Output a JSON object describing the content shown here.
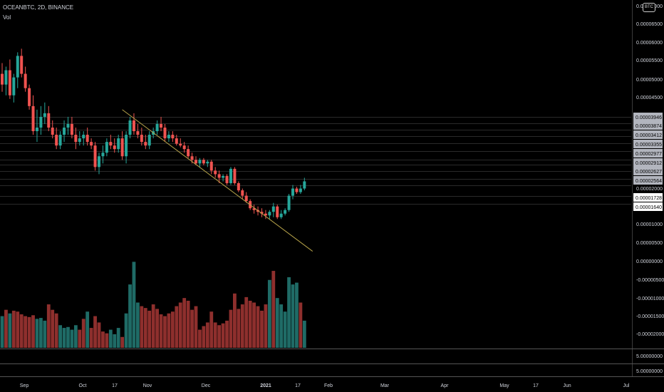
{
  "symbol_line": "OCEANBTC, 2D, BINANCE",
  "volume_label": "Vol",
  "currency_badge": "BTC",
  "colors": {
    "up": "#26a69a",
    "down": "#ef5350",
    "up_vol": "#1f6b66",
    "down_vol": "#8e2f2d",
    "trend": "#b8a44a",
    "line": "#3a3a3a",
    "text": "#d1d4dc"
  },
  "price_axis_labels": [
    "0.00007000",
    "0.00006500",
    "0.00006000",
    "0.00005500",
    "0.00005000",
    "0.00004500",
    "0.00002000",
    "0.00001000",
    "0.00000500",
    "0.00000000",
    "-0.00000500",
    "-0.00001000",
    "-0.00001500",
    "-0.00002000"
  ],
  "highlighted_levels": [
    "0.00003946",
    "0.00003874",
    "0.00003412",
    "0.00003355",
    "0.00002977",
    "0.00002912",
    "0.00002627",
    "0.00002564",
    "0.00001728",
    "0.00001640"
  ],
  "pane_labels": [
    "5.00000000",
    "5.00000000"
  ],
  "time_axis_labels": [
    "Sep",
    "Oct",
    "17",
    "Nov",
    "Dec",
    "2021",
    "17",
    "Feb",
    "Mar",
    "Apr",
    "May",
    "17",
    "Jun",
    "Jul"
  ],
  "chart_data": {
    "type": "candlestick",
    "title": "OCEANBTC, 2D, BINANCE",
    "interval": "2D",
    "exchange": "BINANCE",
    "y_axis_side": "right",
    "grid": false,
    "candles": [
      {
        "o": 5.1,
        "h": 5.4,
        "l": 4.6,
        "c": 4.8
      },
      {
        "o": 4.8,
        "h": 5.3,
        "l": 4.5,
        "c": 5.2
      },
      {
        "o": 5.2,
        "h": 5.5,
        "l": 4.4,
        "c": 4.5
      },
      {
        "o": 4.5,
        "h": 5.1,
        "l": 4.3,
        "c": 5.0
      },
      {
        "o": 5.0,
        "h": 5.7,
        "l": 4.7,
        "c": 5.6
      },
      {
        "o": 5.6,
        "h": 5.8,
        "l": 5.0,
        "c": 5.1
      },
      {
        "o": 5.1,
        "h": 5.3,
        "l": 4.6,
        "c": 4.7
      },
      {
        "o": 4.7,
        "h": 4.8,
        "l": 4.1,
        "c": 4.2
      },
      {
        "o": 4.2,
        "h": 4.5,
        "l": 3.4,
        "c": 3.5
      },
      {
        "o": 3.5,
        "h": 4.1,
        "l": 3.2,
        "c": 3.6
      },
      {
        "o": 3.6,
        "h": 4.2,
        "l": 3.4,
        "c": 3.9
      },
      {
        "o": 3.9,
        "h": 4.3,
        "l": 3.7,
        "c": 4.0
      },
      {
        "o": 4.0,
        "h": 4.2,
        "l": 3.5,
        "c": 3.6
      },
      {
        "o": 3.6,
        "h": 3.8,
        "l": 3.3,
        "c": 3.4
      },
      {
        "o": 3.4,
        "h": 3.6,
        "l": 3.0,
        "c": 3.1
      },
      {
        "o": 3.1,
        "h": 3.5,
        "l": 3.0,
        "c": 3.4
      },
      {
        "o": 3.4,
        "h": 3.8,
        "l": 3.2,
        "c": 3.6
      },
      {
        "o": 3.6,
        "h": 3.9,
        "l": 3.4,
        "c": 3.7
      },
      {
        "o": 3.7,
        "h": 3.9,
        "l": 3.3,
        "c": 3.4
      },
      {
        "o": 3.4,
        "h": 3.6,
        "l": 3.0,
        "c": 3.2
      },
      {
        "o": 3.2,
        "h": 3.5,
        "l": 3.1,
        "c": 3.3
      },
      {
        "o": 3.3,
        "h": 3.5,
        "l": 3.1,
        "c": 3.4
      },
      {
        "o": 3.4,
        "h": 3.6,
        "l": 3.1,
        "c": 3.2
      },
      {
        "o": 3.2,
        "h": 3.3,
        "l": 3.0,
        "c": 3.1
      },
      {
        "o": 3.1,
        "h": 3.2,
        "l": 2.4,
        "c": 2.5
      },
      {
        "o": 2.5,
        "h": 2.9,
        "l": 2.3,
        "c": 2.8
      },
      {
        "o": 2.8,
        "h": 3.1,
        "l": 2.6,
        "c": 2.9
      },
      {
        "o": 2.9,
        "h": 3.3,
        "l": 2.8,
        "c": 3.2
      },
      {
        "o": 3.2,
        "h": 3.4,
        "l": 3.0,
        "c": 3.1
      },
      {
        "o": 3.1,
        "h": 3.3,
        "l": 2.9,
        "c": 3.0
      },
      {
        "o": 3.0,
        "h": 3.4,
        "l": 2.9,
        "c": 3.3
      },
      {
        "o": 3.3,
        "h": 3.5,
        "l": 2.7,
        "c": 2.8
      },
      {
        "o": 2.8,
        "h": 3.5,
        "l": 2.6,
        "c": 3.4
      },
      {
        "o": 3.4,
        "h": 3.9,
        "l": 3.3,
        "c": 3.8
      },
      {
        "o": 3.8,
        "h": 4.0,
        "l": 3.4,
        "c": 3.5
      },
      {
        "o": 3.5,
        "h": 3.7,
        "l": 3.3,
        "c": 3.4
      },
      {
        "o": 3.4,
        "h": 3.6,
        "l": 3.1,
        "c": 3.2
      },
      {
        "o": 3.2,
        "h": 3.4,
        "l": 3.0,
        "c": 3.1
      },
      {
        "o": 3.1,
        "h": 3.5,
        "l": 3.0,
        "c": 3.4
      },
      {
        "o": 3.4,
        "h": 3.6,
        "l": 3.3,
        "c": 3.5
      },
      {
        "o": 3.5,
        "h": 3.8,
        "l": 3.4,
        "c": 3.7
      },
      {
        "o": 3.7,
        "h": 3.9,
        "l": 3.5,
        "c": 3.6
      },
      {
        "o": 3.6,
        "h": 3.7,
        "l": 3.2,
        "c": 3.3
      },
      {
        "o": 3.3,
        "h": 3.5,
        "l": 3.2,
        "c": 3.4
      },
      {
        "o": 3.4,
        "h": 3.5,
        "l": 3.2,
        "c": 3.3
      },
      {
        "o": 3.3,
        "h": 3.4,
        "l": 3.1,
        "c": 3.15
      },
      {
        "o": 3.15,
        "h": 3.3,
        "l": 3.05,
        "c": 3.1
      },
      {
        "o": 3.1,
        "h": 3.2,
        "l": 2.9,
        "c": 3.0
      },
      {
        "o": 3.0,
        "h": 3.1,
        "l": 2.75,
        "c": 2.8
      },
      {
        "o": 2.8,
        "h": 2.9,
        "l": 2.6,
        "c": 2.7
      },
      {
        "o": 2.7,
        "h": 2.8,
        "l": 2.55,
        "c": 2.6
      },
      {
        "o": 2.6,
        "h": 2.75,
        "l": 2.5,
        "c": 2.7
      },
      {
        "o": 2.7,
        "h": 2.75,
        "l": 2.55,
        "c": 2.6
      },
      {
        "o": 2.6,
        "h": 2.7,
        "l": 2.5,
        "c": 2.65
      },
      {
        "o": 2.65,
        "h": 2.7,
        "l": 2.3,
        "c": 2.4
      },
      {
        "o": 2.4,
        "h": 2.5,
        "l": 2.2,
        "c": 2.3
      },
      {
        "o": 2.3,
        "h": 2.4,
        "l": 2.05,
        "c": 2.2
      },
      {
        "o": 2.2,
        "h": 2.3,
        "l": 2.1,
        "c": 2.25
      },
      {
        "o": 2.25,
        "h": 2.3,
        "l": 2.0,
        "c": 2.05
      },
      {
        "o": 2.05,
        "h": 2.5,
        "l": 2.0,
        "c": 2.45
      },
      {
        "o": 2.45,
        "h": 2.5,
        "l": 2.0,
        "c": 2.05
      },
      {
        "o": 2.05,
        "h": 2.1,
        "l": 1.8,
        "c": 1.85
      },
      {
        "o": 1.85,
        "h": 1.9,
        "l": 1.6,
        "c": 1.7
      },
      {
        "o": 1.7,
        "h": 1.8,
        "l": 1.5,
        "c": 1.55
      },
      {
        "o": 1.55,
        "h": 1.6,
        "l": 1.3,
        "c": 1.35
      },
      {
        "o": 1.35,
        "h": 1.45,
        "l": 1.2,
        "c": 1.3
      },
      {
        "o": 1.3,
        "h": 1.4,
        "l": 1.15,
        "c": 1.25
      },
      {
        "o": 1.25,
        "h": 1.35,
        "l": 1.1,
        "c": 1.2
      },
      {
        "o": 1.2,
        "h": 1.3,
        "l": 1.05,
        "c": 1.15
      },
      {
        "o": 1.15,
        "h": 1.3,
        "l": 1.05,
        "c": 1.25
      },
      {
        "o": 1.25,
        "h": 1.5,
        "l": 1.1,
        "c": 1.4
      },
      {
        "o": 1.4,
        "h": 1.45,
        "l": 1.05,
        "c": 1.1
      },
      {
        "o": 1.1,
        "h": 1.3,
        "l": 1.05,
        "c": 1.2
      },
      {
        "o": 1.2,
        "h": 1.35,
        "l": 1.15,
        "c": 1.3
      },
      {
        "o": 1.3,
        "h": 1.75,
        "l": 1.25,
        "c": 1.7
      },
      {
        "o": 1.7,
        "h": 2.0,
        "l": 1.6,
        "c": 1.9
      },
      {
        "o": 1.9,
        "h": 1.95,
        "l": 1.75,
        "c": 1.8
      },
      {
        "o": 1.8,
        "h": 2.0,
        "l": 1.75,
        "c": 1.9
      },
      {
        "o": 1.9,
        "h": 2.2,
        "l": 1.85,
        "c": 2.1
      }
    ],
    "volume": [
      {
        "v": 35,
        "up": true
      },
      {
        "v": 42,
        "up": false
      },
      {
        "v": 38,
        "up": true
      },
      {
        "v": 41,
        "up": false
      },
      {
        "v": 40,
        "up": false
      },
      {
        "v": 37,
        "up": false
      },
      {
        "v": 35,
        "up": false
      },
      {
        "v": 34,
        "up": false
      },
      {
        "v": 36,
        "up": false
      },
      {
        "v": 32,
        "up": true
      },
      {
        "v": 33,
        "up": true
      },
      {
        "v": 30,
        "up": true
      },
      {
        "v": 48,
        "up": false
      },
      {
        "v": 42,
        "up": false
      },
      {
        "v": 38,
        "up": false
      },
      {
        "v": 25,
        "up": true
      },
      {
        "v": 22,
        "up": true
      },
      {
        "v": 23,
        "up": true
      },
      {
        "v": 20,
        "up": true
      },
      {
        "v": 25,
        "up": true
      },
      {
        "v": 20,
        "up": false
      },
      {
        "v": 32,
        "up": false
      },
      {
        "v": 40,
        "up": true
      },
      {
        "v": 22,
        "up": false
      },
      {
        "v": 35,
        "up": false
      },
      {
        "v": 28,
        "up": false
      },
      {
        "v": 18,
        "up": false
      },
      {
        "v": 16,
        "up": false
      },
      {
        "v": 20,
        "up": true
      },
      {
        "v": 15,
        "up": true
      },
      {
        "v": 22,
        "up": true
      },
      {
        "v": 12,
        "up": false
      },
      {
        "v": 38,
        "up": true
      },
      {
        "v": 70,
        "up": true
      },
      {
        "v": 95,
        "up": true
      },
      {
        "v": 50,
        "up": true
      },
      {
        "v": 46,
        "up": false
      },
      {
        "v": 44,
        "up": false
      },
      {
        "v": 41,
        "up": false
      },
      {
        "v": 48,
        "up": false
      },
      {
        "v": 43,
        "up": false
      },
      {
        "v": 37,
        "up": false
      },
      {
        "v": 35,
        "up": false
      },
      {
        "v": 38,
        "up": false
      },
      {
        "v": 40,
        "up": false
      },
      {
        "v": 46,
        "up": false
      },
      {
        "v": 50,
        "up": false
      },
      {
        "v": 55,
        "up": false
      },
      {
        "v": 52,
        "up": false
      },
      {
        "v": 42,
        "up": false
      },
      {
        "v": 46,
        "up": false
      },
      {
        "v": 20,
        "up": false
      },
      {
        "v": 24,
        "up": false
      },
      {
        "v": 28,
        "up": false
      },
      {
        "v": 40,
        "up": false
      },
      {
        "v": 28,
        "up": false
      },
      {
        "v": 25,
        "up": false
      },
      {
        "v": 27,
        "up": false
      },
      {
        "v": 30,
        "up": false
      },
      {
        "v": 42,
        "up": false
      },
      {
        "v": 60,
        "up": false
      },
      {
        "v": 43,
        "up": false
      },
      {
        "v": 48,
        "up": false
      },
      {
        "v": 56,
        "up": false
      },
      {
        "v": 52,
        "up": false
      },
      {
        "v": 50,
        "up": false
      },
      {
        "v": 46,
        "up": false
      },
      {
        "v": 41,
        "up": false
      },
      {
        "v": 48,
        "up": false
      },
      {
        "v": 75,
        "up": true
      },
      {
        "v": 85,
        "up": false
      },
      {
        "v": 55,
        "up": true
      },
      {
        "v": 48,
        "up": true
      },
      {
        "v": 40,
        "up": true
      },
      {
        "v": 78,
        "up": true
      },
      {
        "v": 70,
        "up": true
      },
      {
        "v": 72,
        "up": true
      },
      {
        "v": 50,
        "up": false
      },
      {
        "v": 30,
        "up": true
      }
    ],
    "trendline": {
      "from_index": 31,
      "from_price": 4.1,
      "to_index": 79,
      "to_price": 0.15
    }
  }
}
